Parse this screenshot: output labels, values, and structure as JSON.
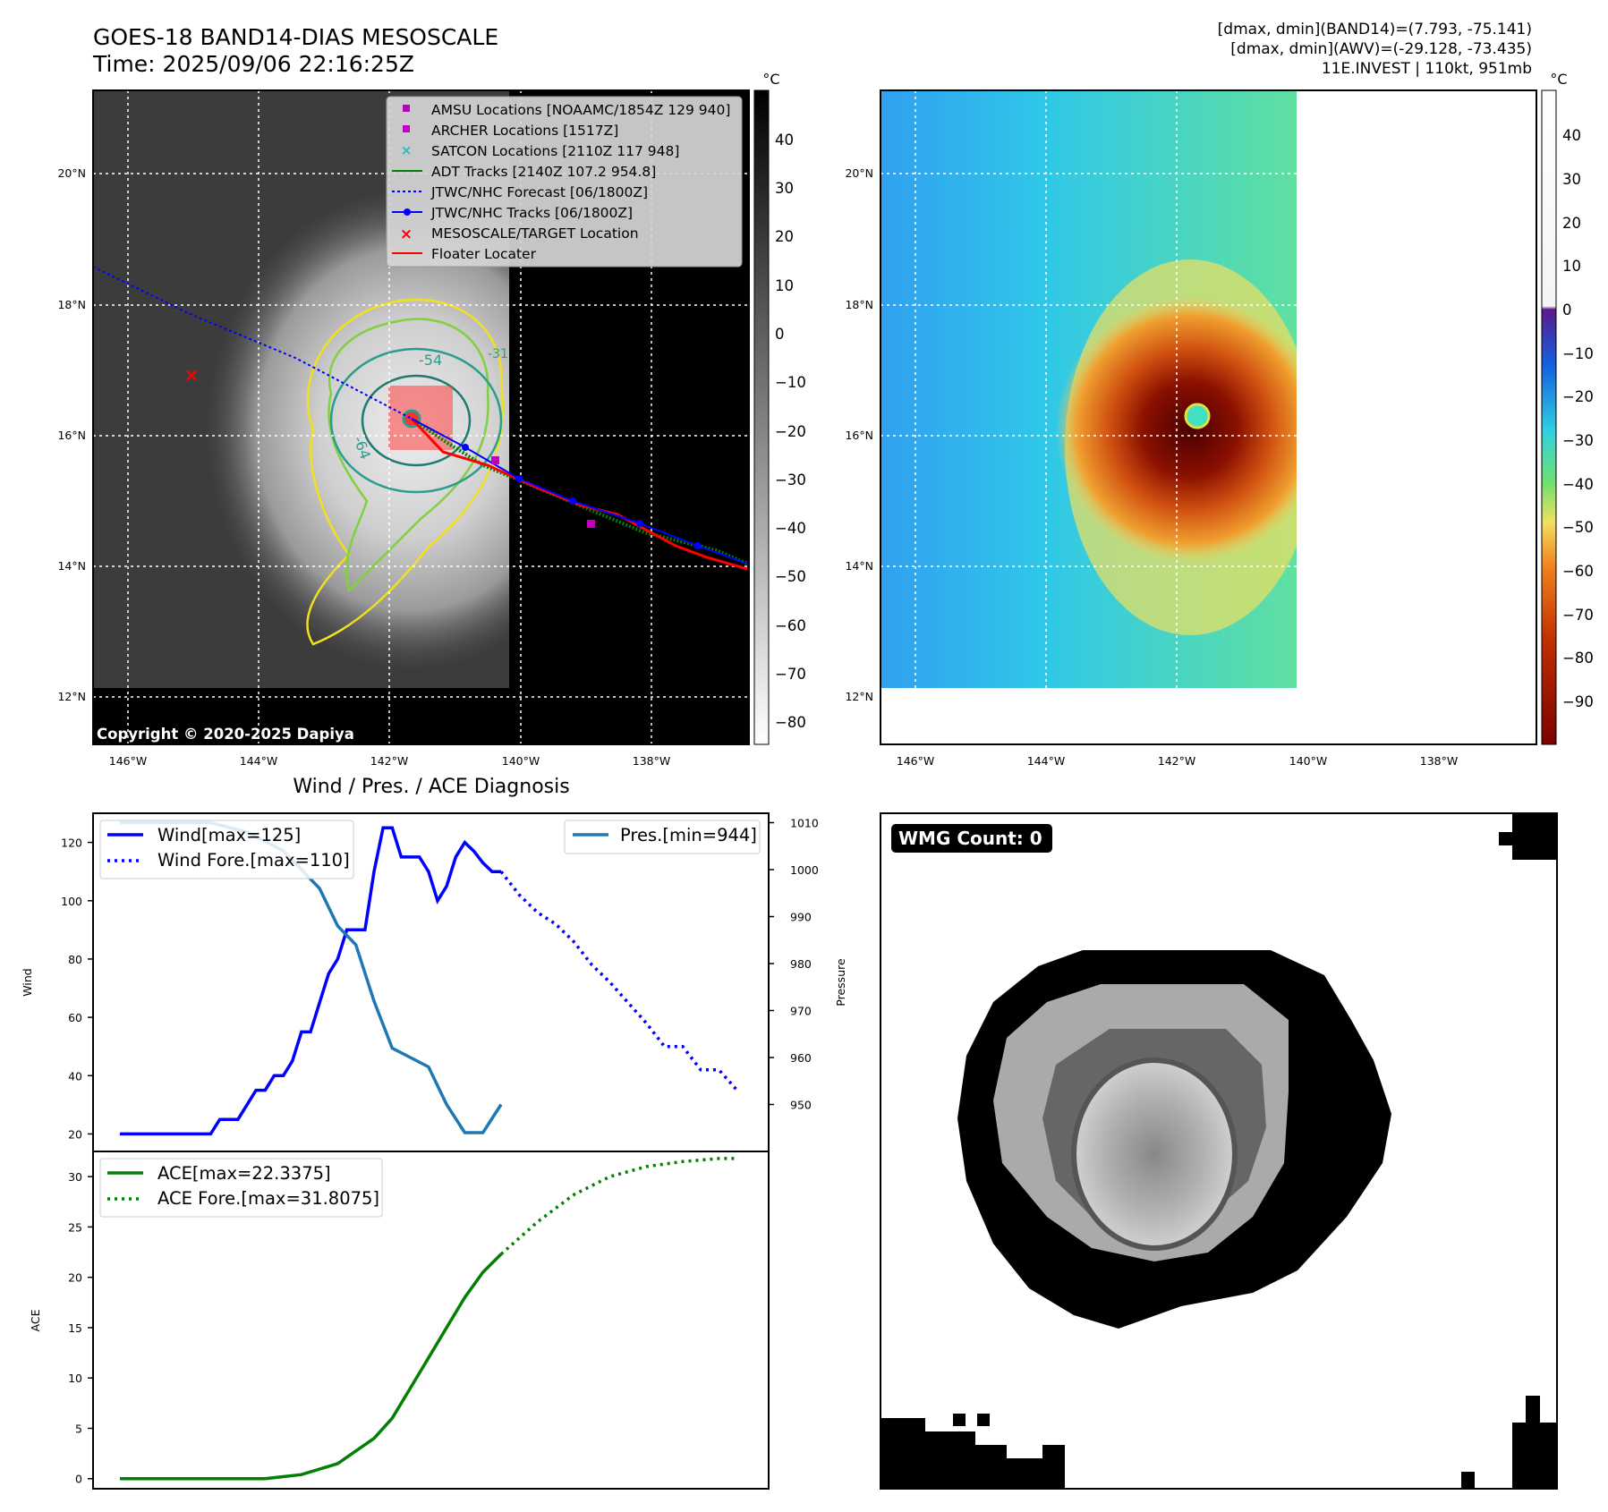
{
  "header": {
    "title_line1": "GOES-18 BAND14-DIAS MESOSCALE",
    "title_line2": "Time: 2025/09/06 22:16:25Z",
    "stat_line1": "[dmax, dmin](BAND14)=(7.793, -75.141)",
    "stat_line2": "[dmax, dmin](AWV)=(-29.128, -73.435)",
    "stat_line3": "11E.INVEST | 110kt, 951mb"
  },
  "ir_panel": {
    "lat_labels": [
      "20°N",
      "18°N",
      "16°N",
      "14°N",
      "12°N"
    ],
    "lon_labels": [
      "146°W",
      "144°W",
      "142°W",
      "140°W",
      "138°W"
    ],
    "colorbar_unit": "°C",
    "colorbar_ticks": [
      "40",
      "30",
      "20",
      "10",
      "0",
      "−10",
      "−20",
      "−30",
      "−40",
      "−50",
      "−60",
      "−70",
      "−80"
    ],
    "copyright": "Copyright © 2020-2025 Dapiya",
    "contour_labels": [
      "-54",
      "-64",
      "-31"
    ],
    "legend": [
      {
        "label": "AMSU Locations [NOAAMC/1854Z 129 940]",
        "marker": "square",
        "color": "#c000c0"
      },
      {
        "label": "ARCHER Locations [1517Z]",
        "marker": "square",
        "color": "#c000c0"
      },
      {
        "label": "SATCON Locations [2110Z 117 948]",
        "marker": "x",
        "color": "#20c0c0"
      },
      {
        "label": "ADT Tracks [2140Z 107.2 954.8]",
        "marker": "line",
        "color": "#008000"
      },
      {
        "label": "JTWC/NHC Forecast [06/1800Z]",
        "marker": "dotted",
        "color": "#0000ff"
      },
      {
        "label": "JTWC/NHC Tracks [06/1800Z]",
        "marker": "line-dot",
        "color": "#0000ff"
      },
      {
        "label": "MESOSCALE/TARGET Location",
        "marker": "x",
        "color": "#ff0000"
      },
      {
        "label": "Floater Locater",
        "marker": "line",
        "color": "#ff0000"
      }
    ]
  },
  "awv_panel": {
    "lat_labels": [
      "20°N",
      "18°N",
      "16°N",
      "14°N",
      "12°N"
    ],
    "lon_labels": [
      "146°W",
      "144°W",
      "142°W",
      "140°W",
      "138°W"
    ],
    "colorbar_unit": "°C",
    "colorbar_ticks": [
      "40",
      "30",
      "20",
      "10",
      "0",
      "−10",
      "−20",
      "−30",
      "−40",
      "−50",
      "−60",
      "−70",
      "−80",
      "−90"
    ]
  },
  "wmg_panel": {
    "badge": "WMG Count: 0"
  },
  "chart_data": [
    {
      "type": "line",
      "title": "Wind / Pres. / ACE Diagnosis",
      "ylabel": "Wind",
      "ylabel_right": "Pressure",
      "ylim": [
        14,
        130
      ],
      "ylim_right": [
        940,
        1012
      ],
      "yticks": [
        20,
        40,
        60,
        80,
        100,
        120
      ],
      "yticks_right": [
        950,
        960,
        970,
        980,
        990,
        1000,
        1010
      ],
      "legend_left": [
        "Wind[max=125]",
        "Wind Fore.[max=110]"
      ],
      "legend_right": [
        "Pres.[min=944]"
      ],
      "series": [
        {
          "name": "Wind[max=125]",
          "color": "#0000ff",
          "style": "solid",
          "axis": "left",
          "x": [
            0,
            1,
            2,
            3,
            4,
            5,
            6,
            7,
            8,
            9,
            10,
            11,
            12,
            13,
            14,
            15,
            16,
            17,
            18,
            19,
            20,
            21,
            22,
            23,
            24,
            25,
            26,
            27,
            28,
            29,
            30,
            31,
            32,
            33,
            34,
            35,
            36,
            37,
            38,
            39,
            40,
            41,
            42
          ],
          "values": [
            20,
            20,
            20,
            20,
            20,
            20,
            20,
            20,
            20,
            20,
            20,
            25,
            25,
            25,
            30,
            35,
            35,
            40,
            40,
            45,
            55,
            55,
            65,
            75,
            80,
            90,
            90,
            90,
            110,
            125,
            125,
            115,
            115,
            115,
            110,
            100,
            105,
            115,
            120,
            117,
            113,
            110,
            110
          ]
        },
        {
          "name": "Wind Fore.[max=110]",
          "color": "#0000ff",
          "style": "dotted",
          "axis": "left",
          "x": [
            42,
            44,
            46,
            48,
            50,
            52,
            54,
            56,
            58,
            60,
            62,
            64,
            66,
            68
          ],
          "values": [
            110,
            102,
            96,
            92,
            86,
            78,
            72,
            65,
            58,
            50,
            50,
            42,
            42,
            35
          ]
        },
        {
          "name": "Pres.[min=944]",
          "color": "#1f77b4",
          "style": "solid",
          "axis": "right",
          "x": [
            0,
            2,
            4,
            6,
            8,
            10,
            12,
            14,
            16,
            18,
            19,
            20,
            21,
            22,
            24,
            26,
            28,
            30,
            32,
            34,
            36,
            38,
            40,
            42
          ],
          "values": [
            1010,
            1010,
            1010,
            1010,
            1010,
            1010,
            1009,
            1008,
            1006,
            1004,
            1002,
            1000,
            998,
            996,
            988,
            984,
            972,
            962,
            960,
            958,
            950,
            944,
            944,
            950
          ]
        }
      ]
    },
    {
      "type": "line",
      "ylabel": "ACE",
      "ylim": [
        -1,
        32.5
      ],
      "yticks": [
        0,
        5,
        10,
        15,
        20,
        25,
        30
      ],
      "legend": [
        "ACE[max=22.3375]",
        "ACE Fore.[max=31.8075]"
      ],
      "series": [
        {
          "name": "ACE[max=22.3375]",
          "color": "#008000",
          "style": "solid",
          "x": [
            0,
            4,
            8,
            12,
            16,
            20,
            24,
            28,
            30,
            32,
            34,
            36,
            38,
            40,
            42
          ],
          "values": [
            0,
            0,
            0,
            0,
            0,
            0.4,
            1.5,
            4,
            6,
            9,
            12,
            15,
            18,
            20.5,
            22.3
          ]
        },
        {
          "name": "ACE Fore.[max=31.8075]",
          "color": "#008000",
          "style": "dotted",
          "x": [
            42,
            46,
            50,
            54,
            58,
            62,
            66,
            68
          ],
          "values": [
            22.3,
            25.5,
            28.2,
            30,
            31,
            31.5,
            31.8,
            31.8
          ]
        }
      ]
    }
  ]
}
